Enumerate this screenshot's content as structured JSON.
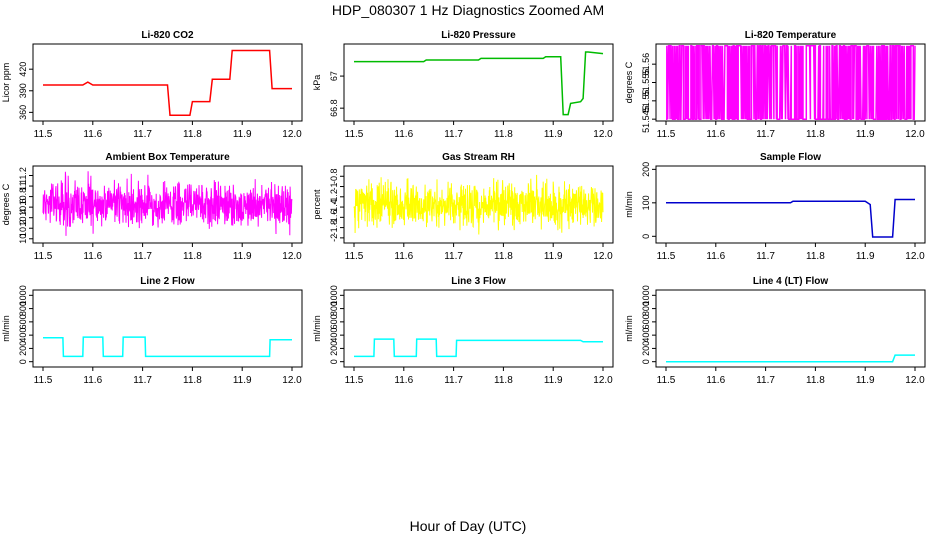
{
  "figure": {
    "title": "HDP_080307  1 Hz Diagnostics Zoomed AM",
    "xlabel": "Hour of Day (UTC)"
  },
  "chart_data": [
    {
      "type": "line",
      "title": "Li-820 CO2",
      "ylabel": "Licor ppm",
      "color": "#ff0000",
      "xlim": [
        11.5,
        12.0
      ],
      "ylim": [
        348,
        455
      ],
      "yticks": [
        360,
        390,
        420
      ],
      "x": [
        11.5,
        11.58,
        11.59,
        11.6,
        11.75,
        11.755,
        11.795,
        11.8,
        11.835,
        11.84,
        11.875,
        11.88,
        11.955,
        11.96,
        12.0
      ],
      "values": [
        398,
        398,
        402,
        398,
        398,
        356,
        356,
        375,
        375,
        406,
        406,
        446,
        446,
        393,
        393
      ]
    },
    {
      "type": "line",
      "title": "Li-820 Pressure",
      "ylabel": "kPa",
      "color": "#00bb00",
      "xlim": [
        11.5,
        12.0
      ],
      "ylim": [
        66.72,
        67.2
      ],
      "yticks": [
        66.8,
        67.0
      ],
      "x": [
        11.5,
        11.64,
        11.645,
        11.75,
        11.755,
        11.88,
        11.885,
        11.915,
        11.92,
        11.93,
        11.935,
        11.955,
        11.96,
        11.965,
        11.97,
        12.0
      ],
      "values": [
        67.09,
        67.09,
        67.1,
        67.1,
        67.11,
        67.11,
        67.12,
        67.12,
        66.76,
        66.76,
        66.83,
        66.84,
        66.86,
        67.15,
        67.15,
        67.14
      ]
    },
    {
      "type": "line",
      "title": "Li-820 Temperature",
      "ylabel": "degrees C",
      "color": "#ff00ff",
      "xlim": [
        11.5,
        12.0
      ],
      "ylim": [
        51.5445,
        51.5655
      ],
      "yticks": [
        51.545,
        51.55,
        51.555,
        51.56
      ],
      "x": [
        11.5,
        12.0
      ],
      "values": [
        51.545,
        51.565
      ]
    },
    {
      "type": "line",
      "title": "Ambient Box Temperature",
      "ylabel": "degrees C",
      "color": "#ff00ff",
      "xlim": [
        11.5,
        12.0
      ],
      "ylim": [
        9.92,
        11.38
      ],
      "yticks": [
        10.0,
        10.2,
        10.4,
        10.6,
        10.8,
        11.0,
        11.2
      ],
      "x": [
        11.5,
        12.0
      ],
      "values": [
        10.0,
        11.3
      ]
    },
    {
      "type": "line",
      "title": "Gas Stream RH",
      "ylabel": "percent",
      "color": "#ffff00",
      "xlim": [
        11.5,
        12.0
      ],
      "ylim": [
        -2.1,
        -0.6
      ],
      "yticks": [
        -2.0,
        -1.8,
        -1.6,
        -1.4,
        -1.2,
        -1.0,
        -0.8
      ],
      "x": [
        11.5,
        12.0
      ],
      "values": [
        -2.0,
        -0.7
      ]
    },
    {
      "type": "line",
      "title": "Sample Flow",
      "ylabel": "ml/min",
      "color": "#0000cc",
      "xlim": [
        11.5,
        12.0
      ],
      "ylim": [
        -20,
        210
      ],
      "yticks": [
        0,
        100,
        200
      ],
      "x": [
        11.5,
        11.75,
        11.755,
        11.9,
        11.91,
        11.915,
        11.955,
        11.96,
        12.0
      ],
      "values": [
        100,
        100,
        105,
        105,
        95,
        -2,
        -2,
        110,
        110
      ]
    },
    {
      "type": "line",
      "title": "Line 2 Flow",
      "ylabel": "ml/min",
      "color": "#00ffff",
      "xlim": [
        11.5,
        12.0
      ],
      "ylim": [
        -80,
        1080
      ],
      "yticks": [
        0,
        200,
        400,
        600,
        800,
        1000
      ],
      "x": [
        11.5,
        11.54,
        11.541,
        11.58,
        11.581,
        11.62,
        11.621,
        11.66,
        11.661,
        11.705,
        11.706,
        11.955,
        11.956,
        12.0
      ],
      "values": [
        360,
        360,
        80,
        80,
        370,
        370,
        80,
        80,
        370,
        370,
        80,
        80,
        330,
        330
      ]
    },
    {
      "type": "line",
      "title": "Line 3 Flow",
      "ylabel": "ml/min",
      "color": "#00ffff",
      "xlim": [
        11.5,
        12.0
      ],
      "ylim": [
        -80,
        1080
      ],
      "yticks": [
        0,
        200,
        400,
        600,
        800,
        1000
      ],
      "x": [
        11.5,
        11.54,
        11.541,
        11.58,
        11.581,
        11.625,
        11.626,
        11.665,
        11.666,
        11.705,
        11.706,
        11.955,
        11.96,
        12.0
      ],
      "values": [
        80,
        80,
        340,
        340,
        80,
        80,
        340,
        340,
        80,
        80,
        320,
        320,
        300,
        300
      ]
    },
    {
      "type": "line",
      "title": "Line 4 (LT) Flow",
      "ylabel": "ml/min",
      "color": "#00ffff",
      "xlim": [
        11.5,
        12.0
      ],
      "ylim": [
        -80,
        1080
      ],
      "yticks": [
        0,
        200,
        400,
        600,
        800,
        1000
      ],
      "x": [
        11.5,
        11.955,
        11.96,
        12.0
      ],
      "values": [
        0,
        0,
        100,
        100
      ]
    }
  ],
  "xticks": [
    "11.5",
    "11.6",
    "11.7",
    "11.8",
    "11.9",
    "12.0"
  ]
}
